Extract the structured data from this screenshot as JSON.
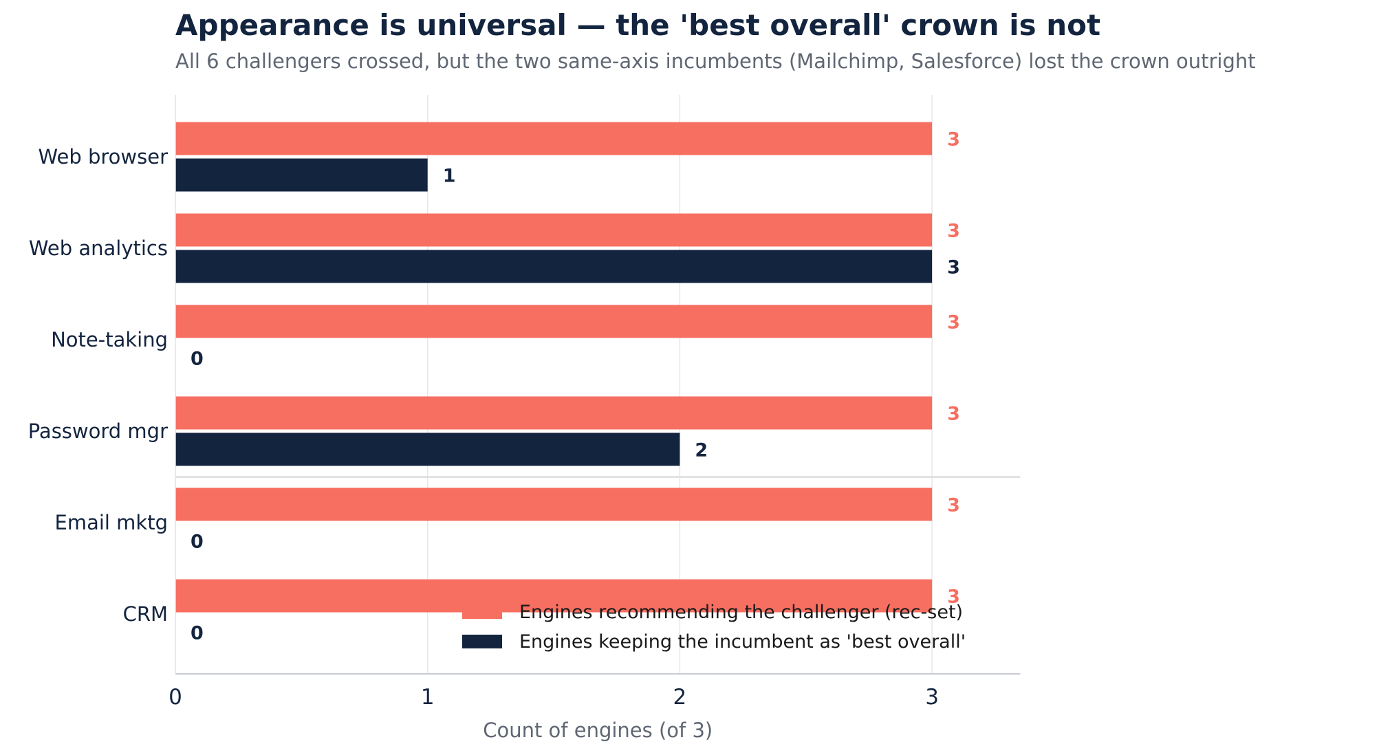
{
  "chart_data": {
    "type": "bar",
    "orientation": "horizontal",
    "title": "Appearance is universal — the 'best overall' crown is not",
    "subtitle": "All 6 challengers crossed, but the two same-axis incumbents (Mailchimp, Salesforce) lost the crown outright",
    "xlabel": "Count of engines (of 3)",
    "xlim": [
      0,
      3.35
    ],
    "xticks": [
      "0",
      "1",
      "2",
      "3"
    ],
    "categories": [
      "Web browser",
      "Web analytics",
      "Note-taking",
      "Password mgr",
      "Email mktg",
      "CRM"
    ],
    "series": [
      {
        "name": "Engines recommending the challenger (rec-set)",
        "values": [
          3,
          3,
          3,
          3,
          3,
          3
        ],
        "color": "#f76f61"
      },
      {
        "name": "Engines keeping the incumbent as 'best overall'",
        "values": [
          1,
          3,
          0,
          2,
          0,
          0
        ],
        "color": "#13243f"
      }
    ],
    "grid": true,
    "legend_position": "lower-right",
    "separator_after_category": "Password mgr"
  }
}
